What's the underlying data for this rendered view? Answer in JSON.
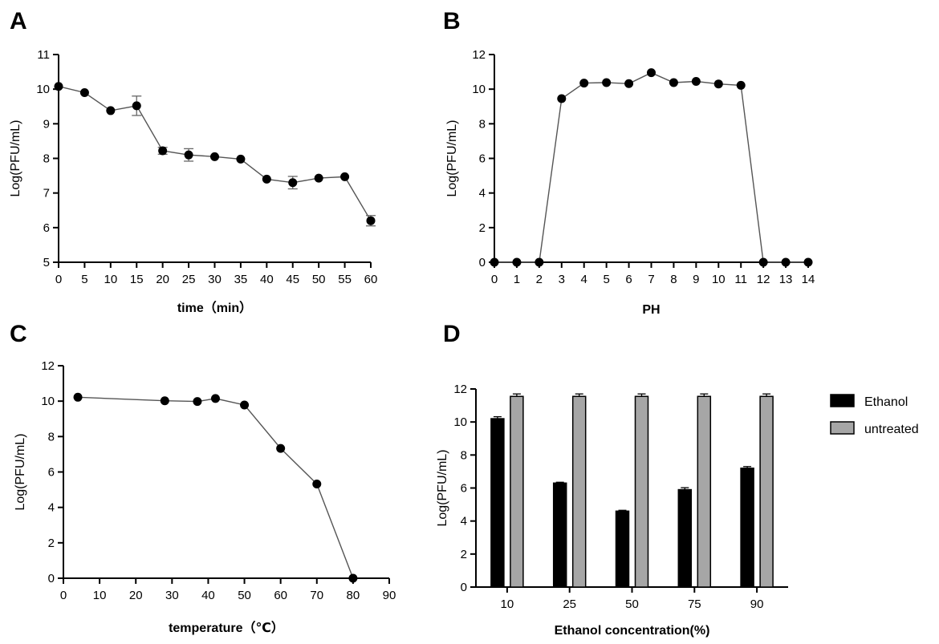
{
  "chart_data": [
    {
      "panel": "A",
      "type": "line",
      "title": "",
      "xlabel": "time（min）",
      "ylabel": "Log(PFU/mL)",
      "xlim": [
        0,
        60
      ],
      "ylim": [
        5,
        11
      ],
      "xticks": [
        0,
        5,
        10,
        15,
        20,
        25,
        30,
        35,
        40,
        45,
        50,
        55,
        60
      ],
      "yticks": [
        5,
        6,
        7,
        8,
        9,
        10,
        11
      ],
      "x": [
        0,
        5,
        10,
        15,
        20,
        25,
        30,
        35,
        40,
        45,
        50,
        55,
        60
      ],
      "y": [
        10.08,
        9.9,
        9.38,
        9.52,
        8.22,
        8.1,
        8.05,
        7.98,
        7.4,
        7.3,
        7.43,
        7.47,
        6.2
      ],
      "error": [
        0.05,
        0.03,
        0.05,
        0.28,
        0.1,
        0.18,
        0.04,
        0.05,
        0.05,
        0.18,
        0.05,
        0.06,
        0.15
      ],
      "grid": false
    },
    {
      "panel": "B",
      "type": "line",
      "title": "",
      "xlabel": "PH",
      "ylabel": "Log(PFU/mL)",
      "xlim": [
        0,
        14
      ],
      "ylim": [
        0,
        12
      ],
      "xticks": [
        0,
        1,
        2,
        3,
        4,
        5,
        6,
        7,
        8,
        9,
        10,
        11,
        12,
        13,
        14
      ],
      "yticks": [
        0,
        2,
        4,
        6,
        8,
        10,
        12
      ],
      "x": [
        0,
        1,
        2,
        3,
        4,
        5,
        6,
        7,
        8,
        9,
        10,
        11,
        12,
        13,
        14
      ],
      "y": [
        0,
        0,
        0,
        9.45,
        10.35,
        10.38,
        10.32,
        10.95,
        10.38,
        10.45,
        10.3,
        10.22,
        0,
        0,
        0
      ],
      "grid": false
    },
    {
      "panel": "C",
      "type": "line",
      "title": "",
      "xlabel": "temperature（℃）",
      "ylabel": "Log(PFU/mL)",
      "xlim": [
        0,
        90
      ],
      "ylim": [
        0,
        12
      ],
      "xticks": [
        0,
        10,
        20,
        30,
        40,
        50,
        60,
        70,
        80,
        90
      ],
      "yticks": [
        0,
        2,
        4,
        6,
        8,
        10,
        12
      ],
      "x": [
        4,
        28,
        37,
        42,
        50,
        60,
        70,
        80
      ],
      "y": [
        10.22,
        10.02,
        9.98,
        10.15,
        9.78,
        7.33,
        5.32,
        0
      ],
      "grid": false
    },
    {
      "panel": "D",
      "type": "bar",
      "title": "",
      "xlabel": "Ethanol concentration(%)",
      "ylabel": "Log(PFU/mL)",
      "ylim": [
        0,
        12
      ],
      "yticks": [
        0,
        2,
        4,
        6,
        8,
        10,
        12
      ],
      "categories": [
        "10",
        "25",
        "50",
        "75",
        "90"
      ],
      "series": [
        {
          "name": "Ethanol",
          "color": "#000000",
          "values": [
            10.2,
            6.3,
            4.6,
            5.9,
            7.2
          ],
          "error": [
            0.12,
            0.05,
            0.05,
            0.12,
            0.1
          ]
        },
        {
          "name": "untreated",
          "color": "#a6a6a6",
          "values": [
            11.55,
            11.55,
            11.55,
            11.55,
            11.55
          ],
          "error": [
            0.15,
            0.15,
            0.15,
            0.15,
            0.15
          ]
        }
      ],
      "legend": "right",
      "grid": false
    }
  ]
}
